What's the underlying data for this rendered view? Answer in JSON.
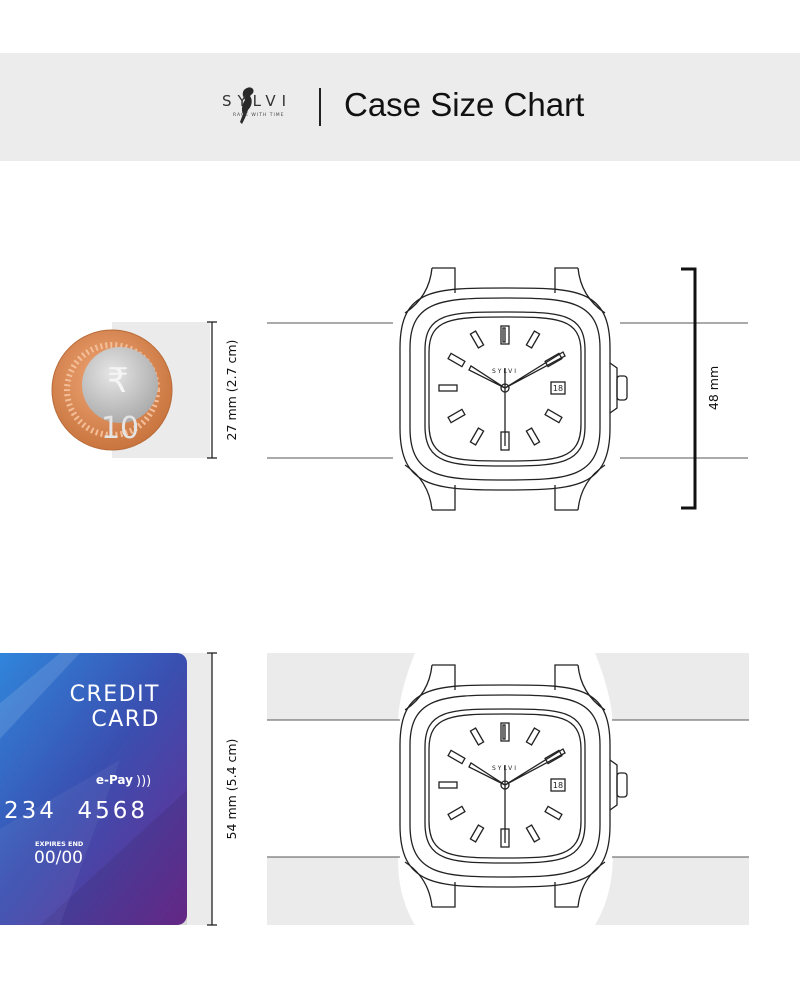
{
  "header": {
    "brand": "SYLVI",
    "tagline": "RACE WITH TIME",
    "title": "Case Size Chart"
  },
  "coin_comparison": {
    "coin_symbol": "₹",
    "coin_value": "10",
    "dimension_label": "27 mm (2.7 cm)",
    "watch_dimension_label": "48 mm"
  },
  "card_comparison": {
    "card_title_line1": "CREDIT",
    "card_title_line2": "CARD",
    "epay_label": "e-Pay",
    "card_number": "234  4568",
    "expires_label": "EXPIRES END",
    "expires_value": "00/00",
    "dimension_label": "54 mm (5.4 cm)"
  },
  "watch": {
    "dial_brand": "SYLVI",
    "date": "18"
  },
  "colors": {
    "header_bg": "#ececec",
    "band_grey": "#ebebeb",
    "coin_ring": "#d98a5a",
    "coin_center": "#c8c8c8",
    "card_blue": "#2f7fd6",
    "card_purple": "#6a2a8e"
  }
}
